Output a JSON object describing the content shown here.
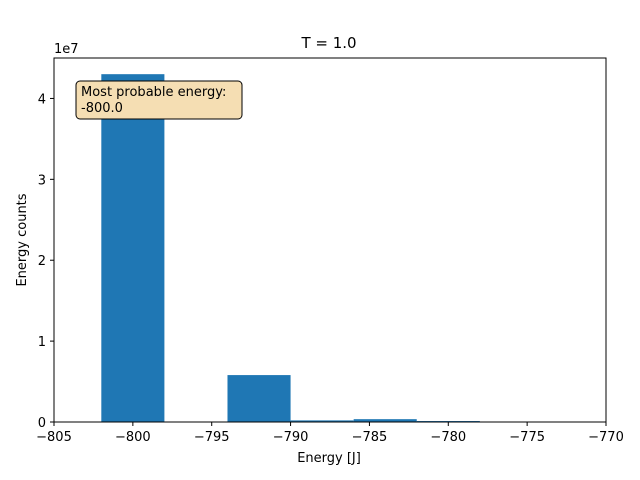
{
  "chart_data": {
    "type": "bar",
    "title": "T = 1.0",
    "xlabel": "Energy [J]",
    "ylabel": "Energy counts",
    "y_offset_label": "1e7",
    "xlim": [
      -805,
      -770
    ],
    "ylim": [
      0,
      45000000
    ],
    "x_ticks": [
      -805,
      -800,
      -795,
      -790,
      -785,
      -780,
      -775,
      -770
    ],
    "x_tick_labels": [
      "−805",
      "−800",
      "−795",
      "−790",
      "−785",
      "−780",
      "−775",
      "−770"
    ],
    "y_ticks": [
      0,
      10000000,
      20000000,
      30000000,
      40000000
    ],
    "y_tick_labels": [
      "0",
      "1",
      "2",
      "3",
      "4"
    ],
    "bar_color": "#1f77b4",
    "bins": [
      {
        "left": -802,
        "right": -798,
        "value": 43000000
      },
      {
        "left": -794,
        "right": -790,
        "value": 5800000
      },
      {
        "left": -790,
        "right": -786,
        "value": 200000
      },
      {
        "left": -786,
        "right": -782,
        "value": 350000
      },
      {
        "left": -782,
        "right": -778,
        "value": 120000
      },
      {
        "left": -778,
        "right": -774,
        "value": 30000
      }
    ],
    "annotation": {
      "lines": [
        "Most probable energy:",
        "-800.0"
      ],
      "background": "#f5deb3"
    },
    "grid": false
  }
}
